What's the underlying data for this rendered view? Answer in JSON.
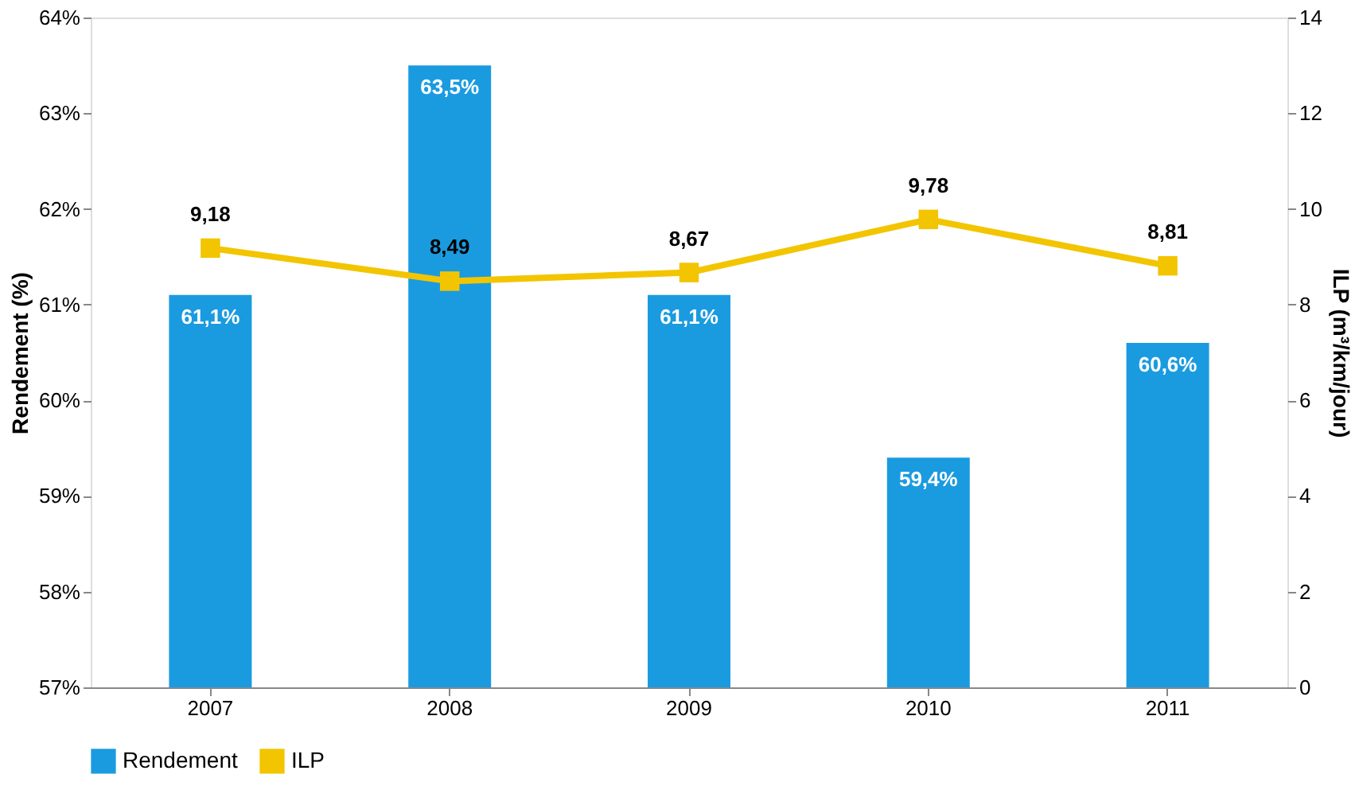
{
  "chart_data": {
    "type": "bar",
    "categories": [
      "2007",
      "2008",
      "2009",
      "2010",
      "2011"
    ],
    "ylabel": "Rendement (%)",
    "y2label": "ILP (m³/km/jour)",
    "ylim": [
      57,
      64
    ],
    "yticks": [
      {
        "value": 57,
        "label": "57%"
      },
      {
        "value": 58,
        "label": "58%"
      },
      {
        "value": 59,
        "label": "59%"
      },
      {
        "value": 60,
        "label": "60%"
      },
      {
        "value": 61,
        "label": "61%"
      },
      {
        "value": 62,
        "label": "62%"
      },
      {
        "value": 63,
        "label": "63%"
      },
      {
        "value": 64,
        "label": "64%"
      }
    ],
    "y2lim": [
      0,
      14
    ],
    "y2ticks": [
      0,
      2,
      4,
      6,
      8,
      10,
      12,
      14
    ],
    "series": [
      {
        "name": "Rendement",
        "color": "#1a9be0",
        "values": [
          61.1,
          63.5,
          61.1,
          59.4,
          60.6
        ],
        "value_labels": [
          "61,1%",
          "63,5%",
          "61,1%",
          "59,4%",
          "60,6%"
        ]
      },
      {
        "name": "ILP",
        "type": "line",
        "axis": "y2",
        "color": "#f2c500",
        "marker": "square",
        "values": [
          9.18,
          8.49,
          8.67,
          9.78,
          8.81
        ],
        "value_labels": [
          "9,18",
          "8,49",
          "8,67",
          "9,78",
          "8,81"
        ]
      }
    ],
    "legend": "bottom",
    "grid": false
  }
}
